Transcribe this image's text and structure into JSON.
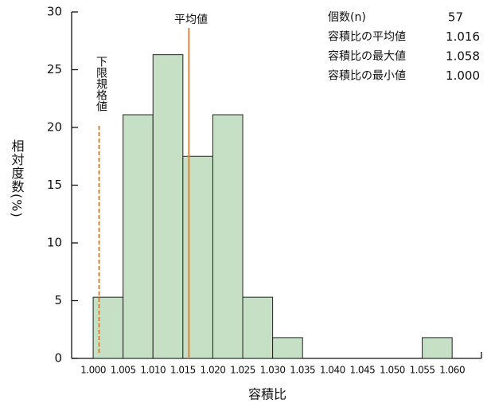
{
  "chart_data": {
    "type": "histogram",
    "bins": [
      1.0,
      1.005,
      1.01,
      1.015,
      1.02,
      1.025,
      1.03,
      1.035,
      1.04,
      1.045,
      1.05,
      1.055,
      1.06
    ],
    "values": [
      5.3,
      21.1,
      26.3,
      17.5,
      21.1,
      5.3,
      1.8,
      0,
      0,
      0,
      0,
      1.8
    ],
    "color": "#c5e0c5",
    "xlabel": "容積比",
    "ylabel": "相対度数(%)",
    "xlim": [
      0.9964,
      1.0649
    ],
    "ylim": [
      0,
      30
    ],
    "xticks": [
      {
        "value": 1.0,
        "label": "1.000"
      },
      {
        "value": 1.005,
        "label": "1.005"
      },
      {
        "value": 1.01,
        "label": "1.010"
      },
      {
        "value": 1.015,
        "label": "1.015"
      },
      {
        "value": 1.02,
        "label": "1.020"
      },
      {
        "value": 1.025,
        "label": "1.025"
      },
      {
        "value": 1.03,
        "label": "1.030"
      },
      {
        "value": 1.035,
        "label": "1.035"
      },
      {
        "value": 1.04,
        "label": "1.040"
      },
      {
        "value": 1.045,
        "label": "1.045"
      },
      {
        "value": 1.05,
        "label": "1.050"
      },
      {
        "value": 1.055,
        "label": "1.055"
      },
      {
        "value": 1.06,
        "label": "1.060"
      }
    ],
    "yticks": [
      0,
      5,
      10,
      15,
      20,
      25,
      30
    ],
    "mean_label": "平均値",
    "lower_limit": {
      "label": "下限規格値",
      "value": 1.001
    },
    "stats": {
      "names": [
        "個数(n)",
        "容積比の平均値",
        "容積比の最大値",
        "容積比の最小値"
      ],
      "values": [
        57,
        1.016,
        1.058,
        1
      ],
      "value_labels": [
        "57",
        "1.016",
        "1.058",
        "1.000"
      ]
    }
  }
}
